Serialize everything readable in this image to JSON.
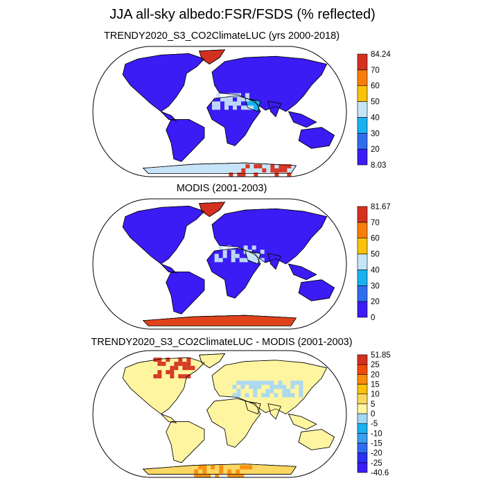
{
  "title": "JJA all-sky albedo:FSR/FSDS (% reflected)",
  "panels": [
    {
      "title": "TRENDY2020_S3_CO2ClimateLUC (yrs 2000-2018)",
      "colorbar": {
        "labels": [
          "8.03",
          "20",
          "30",
          "40",
          "50",
          "60",
          "70",
          "84.24"
        ],
        "colors": [
          "#3b1cf5",
          "#2f6cf0",
          "#18b2f2",
          "#c6e4f7",
          "#fbc20c",
          "#fa7d08",
          "#d43020"
        ]
      }
    },
    {
      "title": "MODIS (2001-2003)",
      "colorbar": {
        "labels": [
          "0",
          "20",
          "30",
          "40",
          "50",
          "60",
          "70",
          "81.67"
        ],
        "colors": [
          "#3b1cf5",
          "#2f6cf0",
          "#18b2f2",
          "#c6e4f7",
          "#fbc20c",
          "#fa7d08",
          "#d43020"
        ]
      }
    },
    {
      "title": "TRENDY2020_S3_CO2ClimateLUC - MODIS (2001-2003)",
      "colorbar": {
        "labels": [
          "-40.6",
          "-25",
          "-20",
          "-15",
          "-10",
          "-5",
          "0",
          "5",
          "10",
          "15",
          "20",
          "25",
          "51.85"
        ],
        "colors": [
          "#3b1cf5",
          "#2a2ff2",
          "#2f6cf0",
          "#3a9ef2",
          "#18b2f2",
          "#a6d7f5",
          "#fff5a0",
          "#fbd864",
          "#fbc20c",
          "#fa8c0a",
          "#f24a0c",
          "#d43020"
        ]
      }
    }
  ]
}
